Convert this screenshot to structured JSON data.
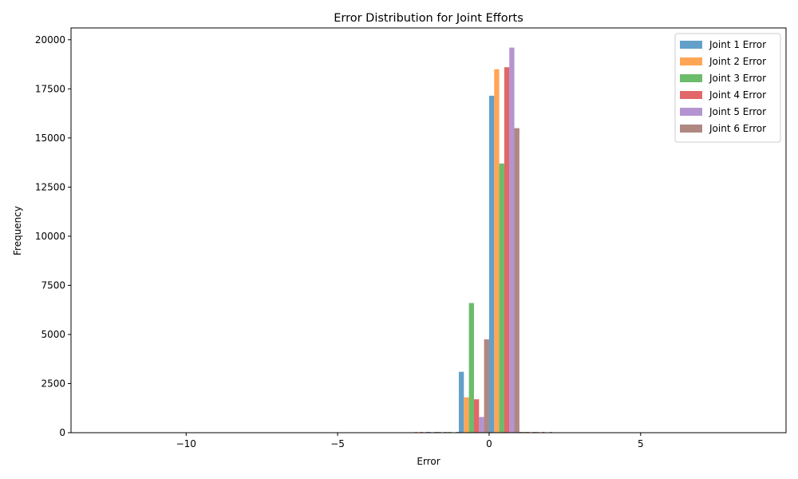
{
  "chart_data": {
    "type": "bar",
    "title": "Error Distribution for Joint Efforts",
    "xlabel": "Error",
    "ylabel": "Frequency",
    "xlim": [
      -13.8,
      9.8
    ],
    "ylim": [
      0,
      20600
    ],
    "xticks": [
      -10,
      -5,
      0,
      5
    ],
    "xtick_labels": [
      "−10",
      "−5",
      "0",
      "5"
    ],
    "yticks": [
      0,
      2500,
      5000,
      7500,
      10000,
      12500,
      15000,
      17500,
      20000
    ],
    "ytick_labels": [
      "0",
      "2500",
      "5000",
      "7500",
      "10000",
      "12500",
      "15000",
      "17500",
      "20000"
    ],
    "bin_edges": [
      -2.55,
      -2.0,
      -1.5,
      -1.0,
      0.0,
      1.0,
      1.5,
      2.0,
      2.5
    ],
    "grid": false,
    "legend_position": "top-right",
    "series": [
      {
        "name": "Joint 1 Error",
        "color": "#1f77b4",
        "values": [
          0,
          8,
          10,
          3100,
          17150,
          10,
          8,
          10
        ]
      },
      {
        "name": "Joint 2 Error",
        "color": "#ff7f0e",
        "values": [
          15,
          0,
          10,
          1800,
          18500,
          25,
          10,
          0
        ]
      },
      {
        "name": "Joint 3 Error",
        "color": "#2ca02c",
        "values": [
          0,
          10,
          12,
          6600,
          13700,
          10,
          0,
          0
        ]
      },
      {
        "name": "Joint 4 Error",
        "color": "#d62728",
        "values": [
          10,
          12,
          0,
          1700,
          18600,
          20,
          8,
          0
        ]
      },
      {
        "name": "Joint 5 Error",
        "color": "#9467bd",
        "values": [
          0,
          10,
          0,
          800,
          19600,
          0,
          0,
          0
        ]
      },
      {
        "name": "Joint 6 Error",
        "color": "#8c564b",
        "values": [
          10,
          0,
          10,
          4750,
          15500,
          15,
          0,
          0
        ]
      }
    ]
  }
}
